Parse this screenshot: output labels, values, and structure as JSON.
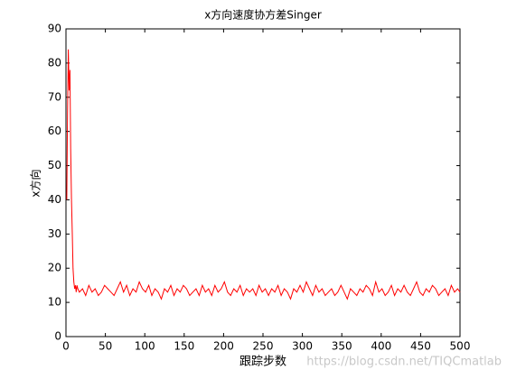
{
  "chart_data": {
    "type": "line",
    "title": "x方向速度协方差Singer",
    "x_label": "跟踪步数",
    "y_label": "x方向",
    "watermark": "https://blog.csdn.net/TIQCmatlab",
    "xlim": [
      0,
      500
    ],
    "xticks": [
      0,
      50,
      100,
      150,
      200,
      250,
      300,
      350,
      400,
      450,
      500
    ],
    "ylim": [
      0,
      90
    ],
    "yticks": [
      0,
      10,
      20,
      30,
      40,
      50,
      60,
      70,
      80,
      90
    ],
    "series": [
      {
        "color": "#ff0000",
        "x": [
          1,
          2,
          3,
          4,
          5,
          6,
          7,
          8,
          9,
          10,
          11,
          12,
          13,
          14,
          15,
          17,
          21,
          25,
          29,
          33,
          37,
          41,
          45,
          49,
          53,
          57,
          61,
          65,
          69,
          73,
          77,
          81,
          85,
          89,
          93,
          97,
          101,
          105,
          109,
          113,
          117,
          121,
          125,
          129,
          133,
          137,
          141,
          145,
          149,
          153,
          157,
          161,
          165,
          169,
          173,
          177,
          181,
          185,
          189,
          193,
          197,
          201,
          205,
          209,
          213,
          217,
          221,
          225,
          229,
          233,
          237,
          241,
          245,
          249,
          253,
          257,
          261,
          265,
          269,
          273,
          277,
          281,
          285,
          289,
          293,
          297,
          301,
          305,
          309,
          313,
          317,
          321,
          325,
          329,
          333,
          337,
          341,
          345,
          349,
          353,
          357,
          361,
          365,
          369,
          373,
          377,
          381,
          385,
          389,
          393,
          397,
          401,
          405,
          409,
          413,
          417,
          421,
          425,
          429,
          433,
          437,
          441,
          445,
          449,
          453,
          457,
          461,
          465,
          469,
          473,
          477,
          481,
          485,
          489,
          493,
          497,
          500
        ],
        "values": [
          40,
          65,
          84,
          72,
          78,
          55,
          40,
          30,
          20,
          16,
          14,
          15,
          13,
          15,
          14,
          13,
          14,
          12,
          15,
          13,
          14,
          12,
          13,
          15,
          14,
          13,
          12,
          14,
          16,
          13,
          15,
          12,
          14,
          13,
          16,
          14,
          13,
          15,
          12,
          14,
          13,
          11,
          14,
          13,
          15,
          12,
          14,
          13,
          15,
          14,
          12,
          13,
          14,
          12,
          15,
          13,
          14,
          12,
          15,
          13,
          14,
          16,
          13,
          12,
          14,
          13,
          15,
          12,
          14,
          13,
          14,
          12,
          15,
          13,
          14,
          12,
          14,
          13,
          15,
          12,
          14,
          13,
          11,
          14,
          13,
          15,
          13,
          16,
          14,
          12,
          15,
          13,
          14,
          12,
          13,
          14,
          12,
          13,
          15,
          13,
          11,
          14,
          13,
          12,
          14,
          13,
          15,
          14,
          12,
          16,
          13,
          14,
          12,
          13,
          15,
          12,
          14,
          13,
          15,
          13,
          12,
          14,
          16,
          13,
          12,
          14,
          13,
          15,
          14,
          12,
          13,
          14,
          12,
          15,
          13,
          14,
          13
        ]
      }
    ]
  }
}
